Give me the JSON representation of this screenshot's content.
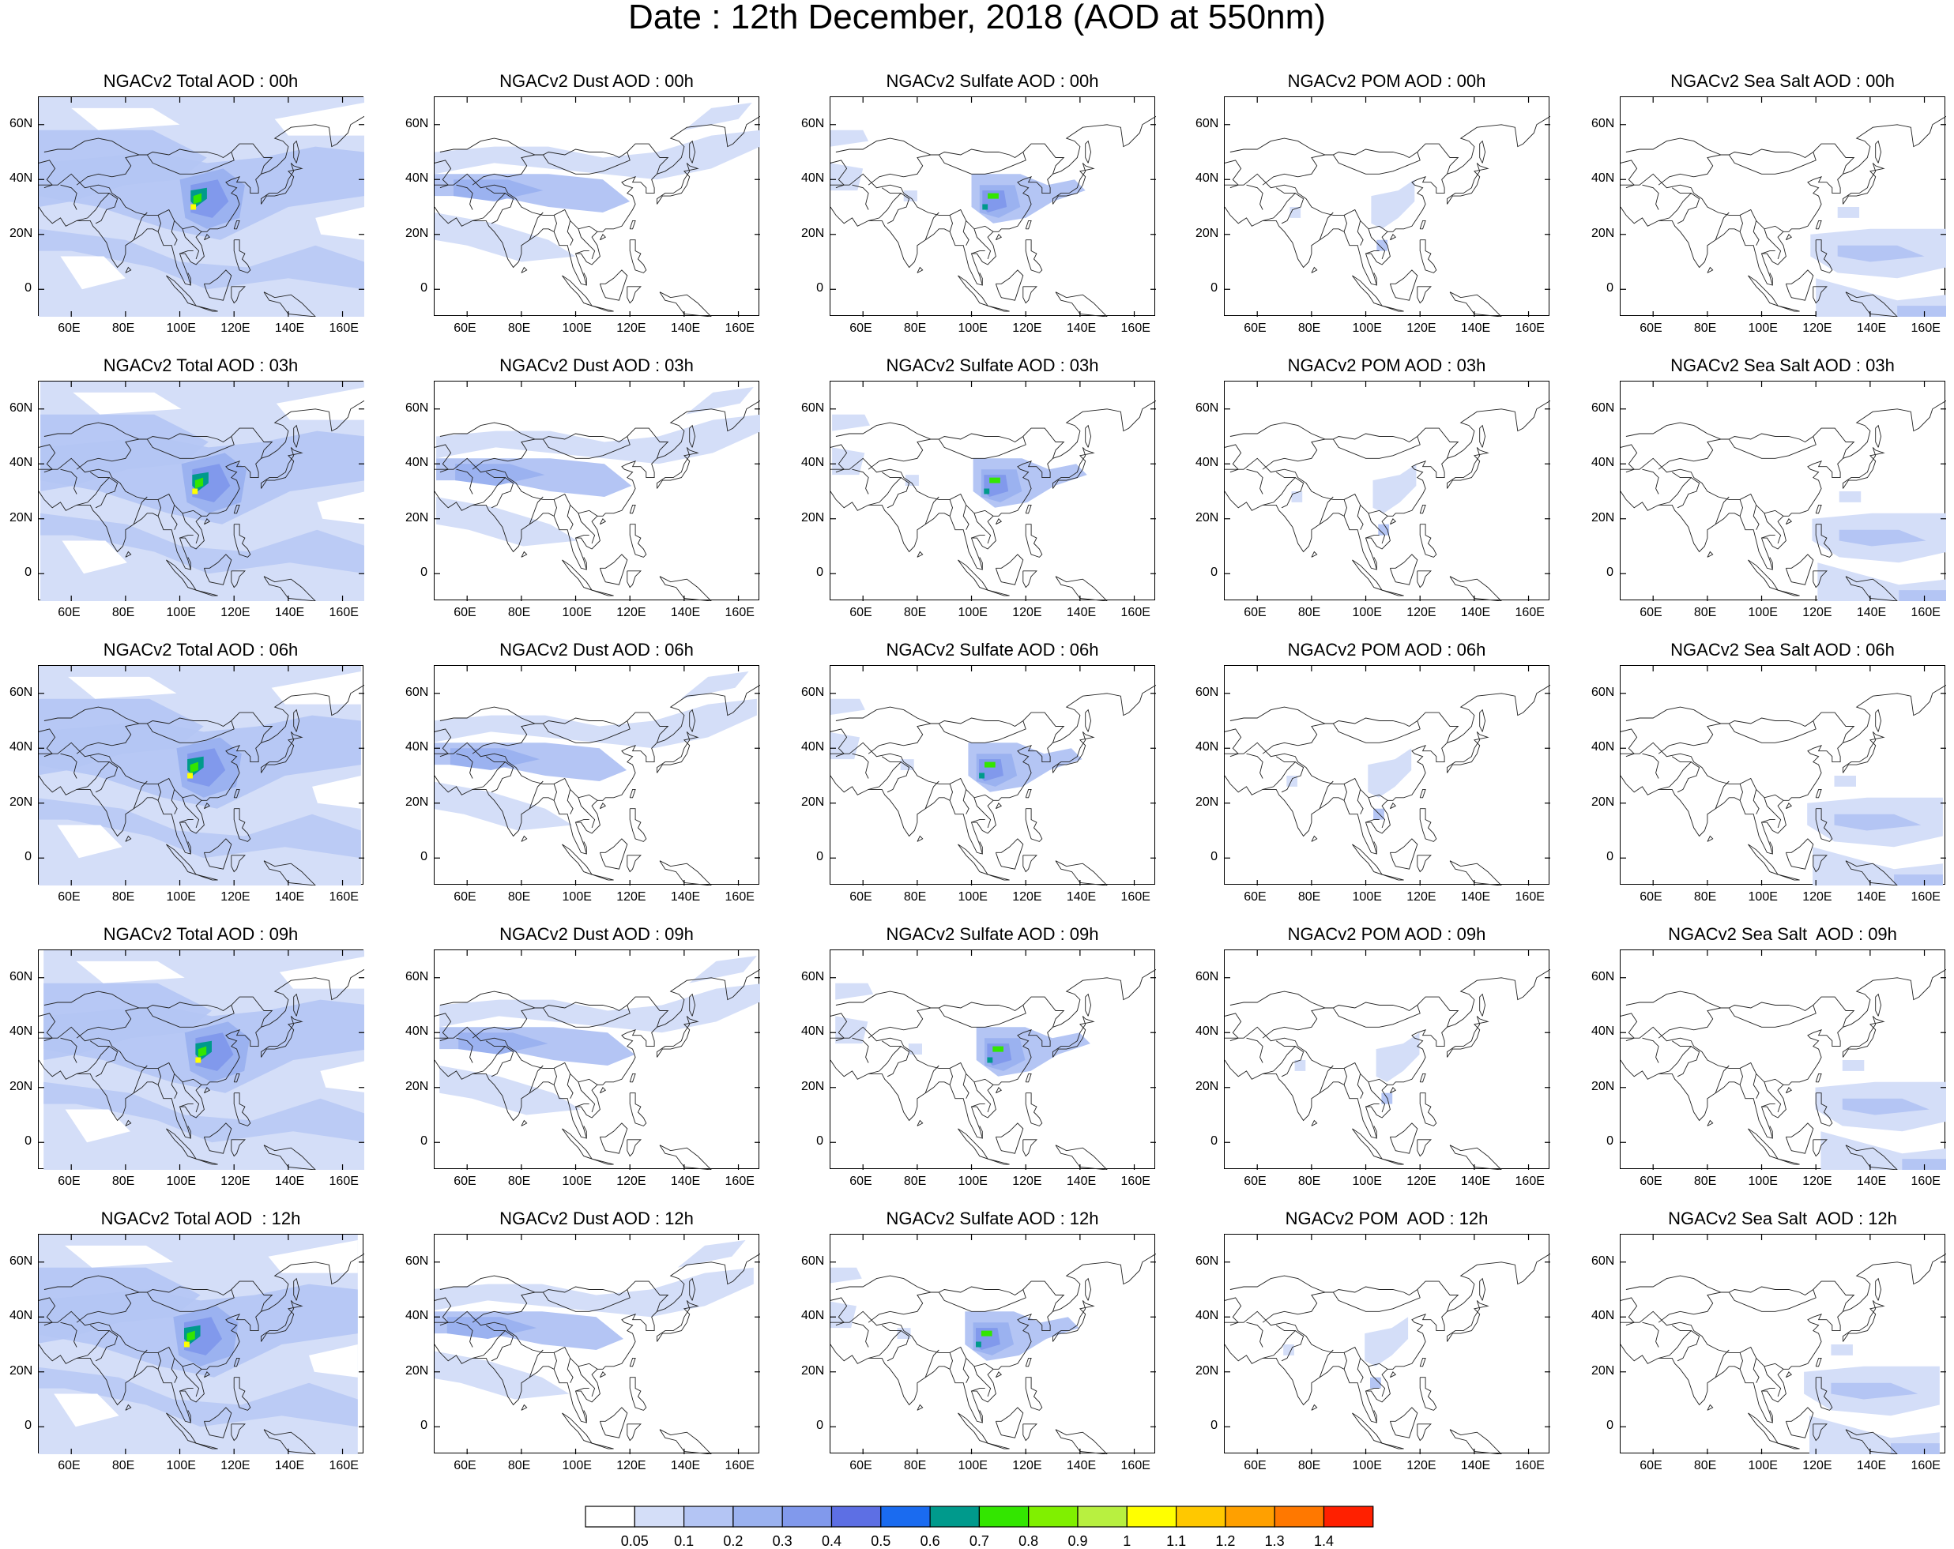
{
  "title": "Date : 12th December, 2018 (AOD at 550nm)",
  "axes": {
    "lon_ticks": [
      "60E",
      "80E",
      "100E",
      "120E",
      "140E",
      "160E"
    ],
    "lat_ticks": [
      "60N",
      "40N",
      "20N",
      "0"
    ]
  },
  "columns": [
    "total",
    "dust",
    "sulfate",
    "pom",
    "seasalt"
  ],
  "rows": [
    "00h",
    "03h",
    "06h",
    "09h",
    "12h"
  ],
  "panel_titles": [
    [
      "NGACv2 Total AOD : 00h",
      "NGACv2 Dust AOD : 00h",
      "NGACv2 Sulfate AOD : 00h",
      "NGACv2 POM AOD : 00h",
      "NGACv2 Sea Salt AOD : 00h"
    ],
    [
      "NGACv2 Total AOD : 03h",
      "NGACv2 Dust AOD : 03h",
      "NGACv2 Sulfate AOD : 03h",
      "NGACv2 POM AOD : 03h",
      "NGACv2 Sea Salt AOD : 03h"
    ],
    [
      "NGACv2 Total AOD : 06h",
      "NGACv2 Dust AOD : 06h",
      "NGACv2 Sulfate AOD : 06h",
      "NGACv2 POM AOD : 06h",
      "NGACv2 Sea Salt AOD : 06h"
    ],
    [
      "NGACv2 Total AOD : 09h",
      "NGACv2 Dust AOD : 09h",
      "NGACv2 Sulfate AOD : 09h",
      "NGACv2 POM AOD : 09h",
      "NGACv2 Sea Salt  AOD : 09h"
    ],
    [
      "NGACv2 Total AOD  : 12h",
      "NGACv2 Dust AOD : 12h",
      "NGACv2 Sulfate AOD : 12h",
      "NGACv2 POM  AOD : 12h",
      "NGACv2 Sea Salt  AOD : 12h"
    ]
  ],
  "colorbar": {
    "labels": [
      "0.05",
      "0.1",
      "0.2",
      "0.3",
      "0.4",
      "0.5",
      "0.6",
      "0.7",
      "0.8",
      "0.9",
      "1",
      "1.1",
      "1.2",
      "1.3",
      "1.4"
    ],
    "colors": [
      "#ffffff",
      "#d4def8",
      "#b4c5f4",
      "#9bb2f0",
      "#8199ec",
      "#5d6fe4",
      "#1a6bf0",
      "#009a8c",
      "#33e600",
      "#80f000",
      "#b8f040",
      "#ffff00",
      "#ffc800",
      "#ffa000",
      "#ff7800",
      "#ff2000"
    ]
  }
}
